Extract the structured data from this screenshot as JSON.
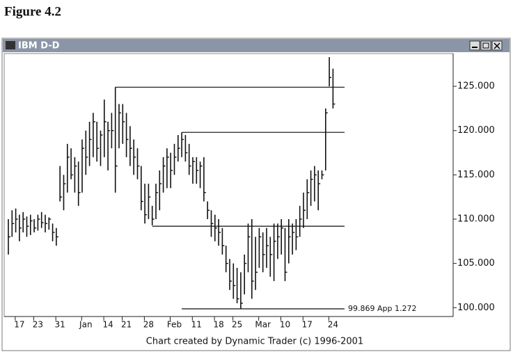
{
  "figure_title": "Figure 4.2",
  "window_title": "IBM D-D",
  "footer": "Chart created by Dynamic Trader (c) 1996-2001",
  "chart_data": {
    "type": "ohlc",
    "categories": [
      null,
      null,
      null,
      "17",
      null,
      null,
      null,
      null,
      "23",
      null,
      null,
      null,
      null,
      null,
      "31",
      null,
      null,
      null,
      null,
      null,
      null,
      "Jan",
      null,
      null,
      null,
      null,
      null,
      "14",
      null,
      null,
      null,
      null,
      "21",
      null,
      null,
      null,
      null,
      null,
      "28",
      null,
      null,
      null,
      null,
      null,
      null,
      "Feb",
      null,
      null,
      null,
      null,
      null,
      "11",
      null,
      null,
      null,
      null,
      null,
      "18",
      null,
      null,
      null,
      null,
      "25",
      null,
      null,
      null,
      null,
      null,
      null,
      "Mar",
      null,
      null,
      null,
      null,
      null,
      "10",
      null,
      null,
      null,
      null,
      null,
      "17",
      null,
      null,
      null,
      null,
      null,
      null,
      "24"
    ],
    "high": [
      110,
      111,
      111.2,
      110.5,
      110.8,
      110.3,
      110.5,
      110,
      110.5,
      110.8,
      110.5,
      110.2,
      109.5,
      109,
      116,
      115,
      118.5,
      118,
      117,
      116.5,
      119,
      120,
      121,
      122,
      121,
      120,
      123.5,
      121,
      122,
      124.9,
      123,
      123,
      122,
      120.5,
      119,
      118,
      116,
      114,
      114,
      111.5,
      114,
      115.5,
      117,
      118,
      117.5,
      118.5,
      119.5,
      119.8,
      119.5,
      118.5,
      117,
      117,
      116.5,
      117,
      112,
      111,
      110.5,
      110,
      109,
      107,
      105.5,
      105,
      104.5,
      104,
      106,
      109.5,
      110,
      108,
      109,
      108.5,
      109,
      108,
      109.5,
      109.5,
      110,
      109,
      110,
      109.5,
      110,
      111.5,
      113,
      114.5,
      115.5,
      116,
      115.5,
      115.5,
      122.5,
      128.3,
      127
    ],
    "low": [
      106,
      108,
      108.5,
      107.5,
      108.5,
      108,
      108.2,
      108.5,
      108.7,
      109,
      108.5,
      108.8,
      107.5,
      107,
      112,
      111,
      113,
      114.5,
      113,
      111.5,
      113,
      115,
      116,
      117,
      116.5,
      116,
      117,
      115.5,
      118,
      113,
      118,
      118.5,
      117,
      116,
      115,
      114.5,
      111,
      109.5,
      110,
      109.3,
      110,
      111,
      113,
      113.5,
      113.5,
      115,
      116.5,
      117,
      116.5,
      115,
      114,
      114,
      113.5,
      112,
      110,
      108,
      107.5,
      107,
      106,
      104,
      102,
      101,
      100.5,
      99.9,
      101.5,
      104,
      101,
      102,
      104.5,
      104,
      104.5,
      103.5,
      103,
      105.5,
      106,
      103,
      105,
      106,
      106.5,
      108,
      109,
      110,
      111.5,
      112,
      111,
      114.5,
      115.5,
      125,
      122.5
    ],
    "close": [
      108,
      109.5,
      110,
      109,
      110,
      109.2,
      109.8,
      109,
      110,
      109.6,
      109.5,
      110,
      108.5,
      108,
      112.5,
      114,
      117,
      115,
      116,
      113,
      118,
      117,
      119,
      121,
      118,
      119.5,
      121,
      120,
      120,
      116,
      122,
      121,
      119,
      118,
      117,
      116,
      112,
      110.5,
      112.5,
      110,
      113,
      114,
      116,
      117,
      115.5,
      117,
      118,
      119,
      117.5,
      116,
      116.5,
      115.5,
      116,
      113,
      111,
      109.5,
      109,
      108.5,
      107,
      105,
      103,
      102.5,
      101,
      100.5,
      105,
      108,
      103,
      104,
      108,
      106,
      107,
      106,
      107.5,
      108,
      109,
      104,
      108,
      108.5,
      108,
      110,
      111,
      113,
      114.5,
      115,
      114,
      115,
      122,
      126,
      123
    ],
    "ylim": [
      99,
      128.7
    ],
    "yticks": [
      {
        "value": 100,
        "label": "100.000"
      },
      {
        "value": 105,
        "label": "105.000"
      },
      {
        "value": 110,
        "label": "110.000"
      },
      {
        "value": 115,
        "label": "115.000"
      },
      {
        "value": 120,
        "label": "120.000"
      },
      {
        "value": 125,
        "label": "125.000"
      }
    ],
    "levels": [
      {
        "value": 124.9,
        "start": 29
      },
      {
        "value": 119.8,
        "start": 47
      },
      {
        "value": 109.2,
        "start": 39
      },
      {
        "value": 99.869,
        "start": 47,
        "label": "99.869 App 1.272"
      }
    ],
    "color": "#111111"
  }
}
